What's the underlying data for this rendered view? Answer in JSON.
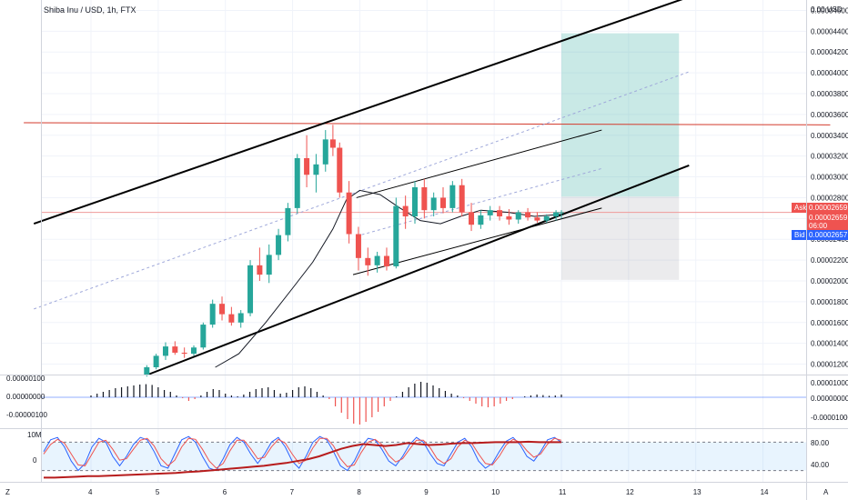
{
  "header": {
    "title": "Shiba Inu / USD, 1h, FTX"
  },
  "price_axis": {
    "top_label": "0.00",
    "currency": "USD",
    "ticks": [
      "0.00004600",
      "0.00004400",
      "0.00004200",
      "0.00004000",
      "0.00003800",
      "0.00003600",
      "0.00003400",
      "0.00003200",
      "0.00003000",
      "0.00002800",
      "0.00002600",
      "0.00002400",
      "0.00002200",
      "0.00002000",
      "0.00001800",
      "0.00001600",
      "0.00001400",
      "0.00001200"
    ]
  },
  "quote": {
    "ask_label": "Ask",
    "ask_price": "0.00002659",
    "last_price": "0.00002659",
    "countdown": "06:00",
    "bid_label": "Bid",
    "bid_price": "0.00002657"
  },
  "macd_axis": {
    "ticks": [
      "0.00001000",
      "0.00000000",
      "-0.00001000"
    ],
    "left_ticks": [
      "0.00000100",
      "0.00000000",
      "-0.00000100"
    ]
  },
  "stoch_axis": {
    "ticks": [
      "80.00",
      "40.00"
    ],
    "left_ticks": [
      "10M",
      "0"
    ]
  },
  "time_axis": {
    "labels": [
      "4",
      "5",
      "6",
      "7",
      "8",
      "9",
      "10",
      "11",
      "12",
      "13",
      "14"
    ]
  },
  "corner_labels": {
    "left": "Z",
    "right": "A"
  },
  "colors": {
    "up": "#26a69a",
    "down": "#ef5350",
    "ask": "#ef5350",
    "bid": "#2962ff",
    "ma": "#131722",
    "ref_line": "#d33a2c"
  },
  "chart_data": {
    "type": "candlestick",
    "title": "Shiba Inu / USD, 1h, FTX",
    "y_range": [
      1.1e-05,
      4.7e-05
    ],
    "x_range_days": [
      3,
      15
    ],
    "candles": [
      {
        "t": 4.83,
        "o": 1.1e-05,
        "h": 1.19e-05,
        "l": 1.08e-05,
        "c": 1.17e-05
      },
      {
        "t": 4.97,
        "o": 1.17e-05,
        "h": 1.3e-05,
        "l": 1.15e-05,
        "c": 1.28e-05
      },
      {
        "t": 5.11,
        "o": 1.28e-05,
        "h": 1.41e-05,
        "l": 1.24e-05,
        "c": 1.37e-05
      },
      {
        "t": 5.25,
        "o": 1.37e-05,
        "h": 1.42e-05,
        "l": 1.29e-05,
        "c": 1.31e-05
      },
      {
        "t": 5.39,
        "o": 1.31e-05,
        "h": 1.36e-05,
        "l": 1.26e-05,
        "c": 1.3e-05
      },
      {
        "t": 5.53,
        "o": 1.3e-05,
        "h": 1.38e-05,
        "l": 1.28e-05,
        "c": 1.36e-05
      },
      {
        "t": 5.67,
        "o": 1.36e-05,
        "h": 1.6e-05,
        "l": 1.34e-05,
        "c": 1.58e-05
      },
      {
        "t": 5.81,
        "o": 1.58e-05,
        "h": 1.82e-05,
        "l": 1.55e-05,
        "c": 1.78e-05
      },
      {
        "t": 5.95,
        "o": 1.78e-05,
        "h": 1.85e-05,
        "l": 1.62e-05,
        "c": 1.68e-05
      },
      {
        "t": 6.09,
        "o": 1.68e-05,
        "h": 1.75e-05,
        "l": 1.57e-05,
        "c": 1.6e-05
      },
      {
        "t": 6.23,
        "o": 1.6e-05,
        "h": 1.72e-05,
        "l": 1.55e-05,
        "c": 1.69e-05
      },
      {
        "t": 6.37,
        "o": 1.69e-05,
        "h": 2.2e-05,
        "l": 1.66e-05,
        "c": 2.15e-05
      },
      {
        "t": 6.51,
        "o": 2.15e-05,
        "h": 2.32e-05,
        "l": 2e-05,
        "c": 2.06e-05
      },
      {
        "t": 6.65,
        "o": 2.06e-05,
        "h": 2.35e-05,
        "l": 1.98e-05,
        "c": 2.25e-05
      },
      {
        "t": 6.79,
        "o": 2.25e-05,
        "h": 2.5e-05,
        "l": 2.2e-05,
        "c": 2.44e-05
      },
      {
        "t": 6.93,
        "o": 2.44e-05,
        "h": 2.75e-05,
        "l": 2.38e-05,
        "c": 2.7e-05
      },
      {
        "t": 7.07,
        "o": 2.7e-05,
        "h": 3.22e-05,
        "l": 2.65e-05,
        "c": 3.18e-05
      },
      {
        "t": 7.21,
        "o": 3.18e-05,
        "h": 3.4e-05,
        "l": 2.9e-05,
        "c": 3.02e-05
      },
      {
        "t": 7.35,
        "o": 3.02e-05,
        "h": 3.22e-05,
        "l": 2.85e-05,
        "c": 3.12e-05
      },
      {
        "t": 7.49,
        "o": 3.12e-05,
        "h": 3.45e-05,
        "l": 3.05e-05,
        "c": 3.36e-05
      },
      {
        "t": 7.6,
        "o": 3.36e-05,
        "h": 3.5e-05,
        "l": 3.2e-05,
        "c": 3.28e-05
      },
      {
        "t": 7.7,
        "o": 3.28e-05,
        "h": 3.33e-05,
        "l": 2.8e-05,
        "c": 2.85e-05
      },
      {
        "t": 7.84,
        "o": 2.85e-05,
        "h": 2.96e-05,
        "l": 2.36e-05,
        "c": 2.45e-05
      },
      {
        "t": 7.98,
        "o": 2.45e-05,
        "h": 2.52e-05,
        "l": 2.1e-05,
        "c": 2.22e-05
      },
      {
        "t": 8.12,
        "o": 2.22e-05,
        "h": 2.32e-05,
        "l": 2.05e-05,
        "c": 2.15e-05
      },
      {
        "t": 8.26,
        "o": 2.15e-05,
        "h": 2.28e-05,
        "l": 2.08e-05,
        "c": 2.24e-05
      },
      {
        "t": 8.4,
        "o": 2.24e-05,
        "h": 2.32e-05,
        "l": 2.1e-05,
        "c": 2.14e-05
      },
      {
        "t": 8.54,
        "o": 2.14e-05,
        "h": 2.8e-05,
        "l": 2.12e-05,
        "c": 2.72e-05
      },
      {
        "t": 8.68,
        "o": 2.72e-05,
        "h": 2.82e-05,
        "l": 2.5e-05,
        "c": 2.62e-05
      },
      {
        "t": 8.82,
        "o": 2.62e-05,
        "h": 2.96e-05,
        "l": 2.55e-05,
        "c": 2.9e-05
      },
      {
        "t": 8.96,
        "o": 2.9e-05,
        "h": 2.98e-05,
        "l": 2.6e-05,
        "c": 2.68e-05
      },
      {
        "t": 9.1,
        "o": 2.68e-05,
        "h": 2.85e-05,
        "l": 2.62e-05,
        "c": 2.8e-05
      },
      {
        "t": 9.24,
        "o": 2.8e-05,
        "h": 2.9e-05,
        "l": 2.65e-05,
        "c": 2.7e-05
      },
      {
        "t": 9.38,
        "o": 2.7e-05,
        "h": 2.96e-05,
        "l": 2.66e-05,
        "c": 2.92e-05
      },
      {
        "t": 9.52,
        "o": 2.92e-05,
        "h": 2.98e-05,
        "l": 2.62e-05,
        "c": 2.66e-05
      },
      {
        "t": 9.66,
        "o": 2.66e-05,
        "h": 2.75e-05,
        "l": 2.48e-05,
        "c": 2.54e-05
      },
      {
        "t": 9.8,
        "o": 2.54e-05,
        "h": 2.68e-05,
        "l": 2.5e-05,
        "c": 2.63e-05
      },
      {
        "t": 9.94,
        "o": 2.63e-05,
        "h": 2.72e-05,
        "l": 2.58e-05,
        "c": 2.68e-05
      },
      {
        "t": 10.08,
        "o": 2.68e-05,
        "h": 2.72e-05,
        "l": 2.58e-05,
        "c": 2.62e-05
      },
      {
        "t": 10.22,
        "o": 2.62e-05,
        "h": 2.69e-05,
        "l": 2.54e-05,
        "c": 2.59e-05
      },
      {
        "t": 10.36,
        "o": 2.59e-05,
        "h": 2.68e-05,
        "l": 2.55e-05,
        "c": 2.66e-05
      },
      {
        "t": 10.5,
        "o": 2.66e-05,
        "h": 2.7e-05,
        "l": 2.58e-05,
        "c": 2.61e-05
      },
      {
        "t": 10.64,
        "o": 2.61e-05,
        "h": 2.66e-05,
        "l": 2.56e-05,
        "c": 2.58e-05
      },
      {
        "t": 10.78,
        "o": 2.58e-05,
        "h": 2.64e-05,
        "l": 2.56e-05,
        "c": 2.62e-05
      },
      {
        "t": 10.92,
        "o": 2.62e-05,
        "h": 2.68e-05,
        "l": 2.58e-05,
        "c": 2.66e-05
      },
      {
        "t": 11.0,
        "o": 2.66e-05,
        "h": 2.68e-05,
        "l": 2.6e-05,
        "c": 2.66e-05
      }
    ],
    "moving_average": [
      {
        "t": 5.85,
        "v": 1.17e-05
      },
      {
        "t": 6.2,
        "v": 1.3e-05
      },
      {
        "t": 6.6,
        "v": 1.6e-05
      },
      {
        "t": 7.0,
        "v": 1.93e-05
      },
      {
        "t": 7.3,
        "v": 2.18e-05
      },
      {
        "t": 7.6,
        "v": 2.5e-05
      },
      {
        "t": 7.8,
        "v": 2.78e-05
      },
      {
        "t": 8.0,
        "v": 2.87e-05
      },
      {
        "t": 8.3,
        "v": 2.83e-05
      },
      {
        "t": 8.6,
        "v": 2.7e-05
      },
      {
        "t": 8.9,
        "v": 2.58e-05
      },
      {
        "t": 9.2,
        "v": 2.55e-05
      },
      {
        "t": 9.5,
        "v": 2.62e-05
      },
      {
        "t": 9.8,
        "v": 2.68e-05
      },
      {
        "t": 10.2,
        "v": 2.66e-05
      },
      {
        "t": 10.6,
        "v": 2.62e-05
      },
      {
        "t": 11.0,
        "v": 2.64e-05
      }
    ],
    "trendlines": [
      {
        "name": "channel-top",
        "t1": 3.15,
        "v1": 2.55e-05,
        "t2": 12.9,
        "v2": 4.73e-05,
        "width": 2
      },
      {
        "name": "channel-bottom",
        "t1": 4.85,
        "v1": 1.1e-05,
        "t2": 12.9,
        "v2": 3.11e-05,
        "width": 2
      },
      {
        "name": "wedge-top",
        "t1": 7.95,
        "v1": 2.8e-05,
        "t2": 11.6,
        "v2": 3.45e-05,
        "width": 1
      },
      {
        "name": "wedge-bottom",
        "t1": 7.9,
        "v1": 2.06e-05,
        "t2": 11.6,
        "v2": 2.7e-05,
        "width": 1
      }
    ],
    "channel_midline": {
      "t1": 3.15,
      "v1": 1.73e-05,
      "t2": 12.9,
      "v2": 4.01e-05
    },
    "wedge_midline": {
      "t1": 7.95,
      "v1": 2.43e-05,
      "t2": 11.6,
      "v2": 3.08e-05
    },
    "resistance_line": {
      "t1": 3.0,
      "v1": 3.52e-05,
      "t2": 15.0,
      "v2": 3.5e-05
    },
    "position": {
      "t_start": 11.0,
      "t_end": 12.75,
      "entry": 2.81e-05,
      "target": 4.38e-05,
      "stop": 2.01e-05
    },
    "macd": {
      "y_range": [
        -1.6e-06,
        1.1e-06
      ],
      "hist": [
        0.1,
        0.2,
        0.3,
        0.4,
        0.5,
        0.55,
        0.6,
        0.65,
        0.7,
        0.72,
        0.68,
        0.55,
        0.4,
        0.3,
        0.1,
        -0.05,
        -0.2,
        -0.1,
        0.1,
        0.3,
        0.45,
        0.4,
        0.2,
        0.1,
        0.05,
        0.15,
        0.3,
        0.45,
        0.5,
        0.55,
        0.4,
        0.2,
        0.25,
        0.4,
        0.55,
        0.6,
        0.5,
        0.3,
        0.1,
        -0.1,
        -0.5,
        -0.85,
        -1.2,
        -1.45,
        -1.5,
        -1.35,
        -1.1,
        -0.8,
        -0.5,
        -0.2,
        0.05,
        0.3,
        0.55,
        0.75,
        0.85,
        0.8,
        0.65,
        0.5,
        0.35,
        0.2,
        0.1,
        -0.05,
        -0.2,
        -0.35,
        -0.5,
        -0.55,
        -0.5,
        -0.35,
        -0.2,
        -0.1,
        0.0,
        0.05,
        0.1,
        0.15,
        0.12,
        0.08,
        0.1,
        0.15
      ]
    },
    "stochastic": {
      "levels": [
        80,
        20
      ],
      "k": [
        60,
        85,
        90,
        70,
        40,
        20,
        35,
        70,
        88,
        80,
        50,
        30,
        50,
        75,
        90,
        85,
        60,
        30,
        25,
        55,
        85,
        92,
        80,
        50,
        25,
        20,
        45,
        75,
        90,
        80,
        55,
        35,
        55,
        80,
        90,
        70,
        40,
        25,
        50,
        80,
        92,
        85,
        60,
        30,
        20,
        40,
        70,
        88,
        85,
        65,
        40,
        30,
        50,
        75,
        90,
        80,
        55,
        35,
        30,
        55,
        80,
        88,
        70,
        40,
        25,
        35,
        60,
        82,
        90,
        75,
        50,
        40,
        60,
        85,
        90,
        80
      ],
      "d": [
        55,
        75,
        86,
        78,
        55,
        32,
        30,
        55,
        80,
        84,
        65,
        42,
        45,
        65,
        84,
        88,
        72,
        45,
        30,
        42,
        70,
        88,
        86,
        65,
        40,
        25,
        35,
        62,
        84,
        84,
        66,
        45,
        48,
        70,
        86,
        78,
        55,
        35,
        42,
        68,
        88,
        88,
        72,
        45,
        28,
        32,
        58,
        80,
        86,
        75,
        52,
        38,
        45,
        65,
        84,
        84,
        68,
        45,
        35,
        45,
        70,
        84,
        78,
        55,
        35,
        32,
        50,
        74,
        86,
        80,
        62,
        48,
        55,
        76,
        88,
        84
      ],
      "volume_line": [
        5,
        5,
        6,
        7,
        8,
        8,
        9,
        10,
        11,
        12,
        13,
        14,
        15,
        17,
        18,
        20,
        22,
        24,
        26,
        28,
        30,
        33,
        36,
        40,
        44,
        50,
        58,
        66,
        72,
        76,
        74,
        72,
        74,
        78,
        76,
        74,
        75,
        77,
        78,
        78,
        79,
        80,
        80,
        80,
        81,
        80,
        80,
        80
      ]
    }
  }
}
